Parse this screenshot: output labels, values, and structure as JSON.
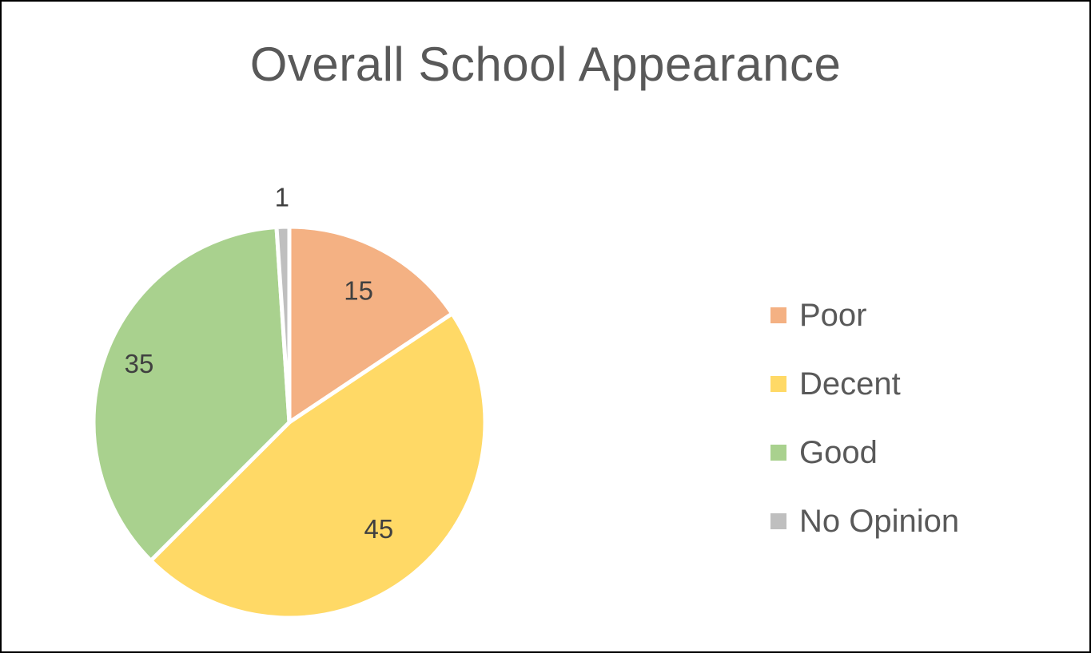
{
  "chart_data": {
    "type": "pie",
    "title": "Overall School Appearance",
    "categories": [
      "Poor",
      "Decent",
      "Good",
      "No Opinion"
    ],
    "values": [
      15,
      45,
      35,
      1
    ],
    "data_labels": [
      "15",
      "45",
      "35",
      "1"
    ],
    "colors": [
      "#F4B183",
      "#FFD966",
      "#A9D18E",
      "#BFBFBF"
    ],
    "legend_position": "right",
    "slice_border_color": "#FFFFFF"
  }
}
